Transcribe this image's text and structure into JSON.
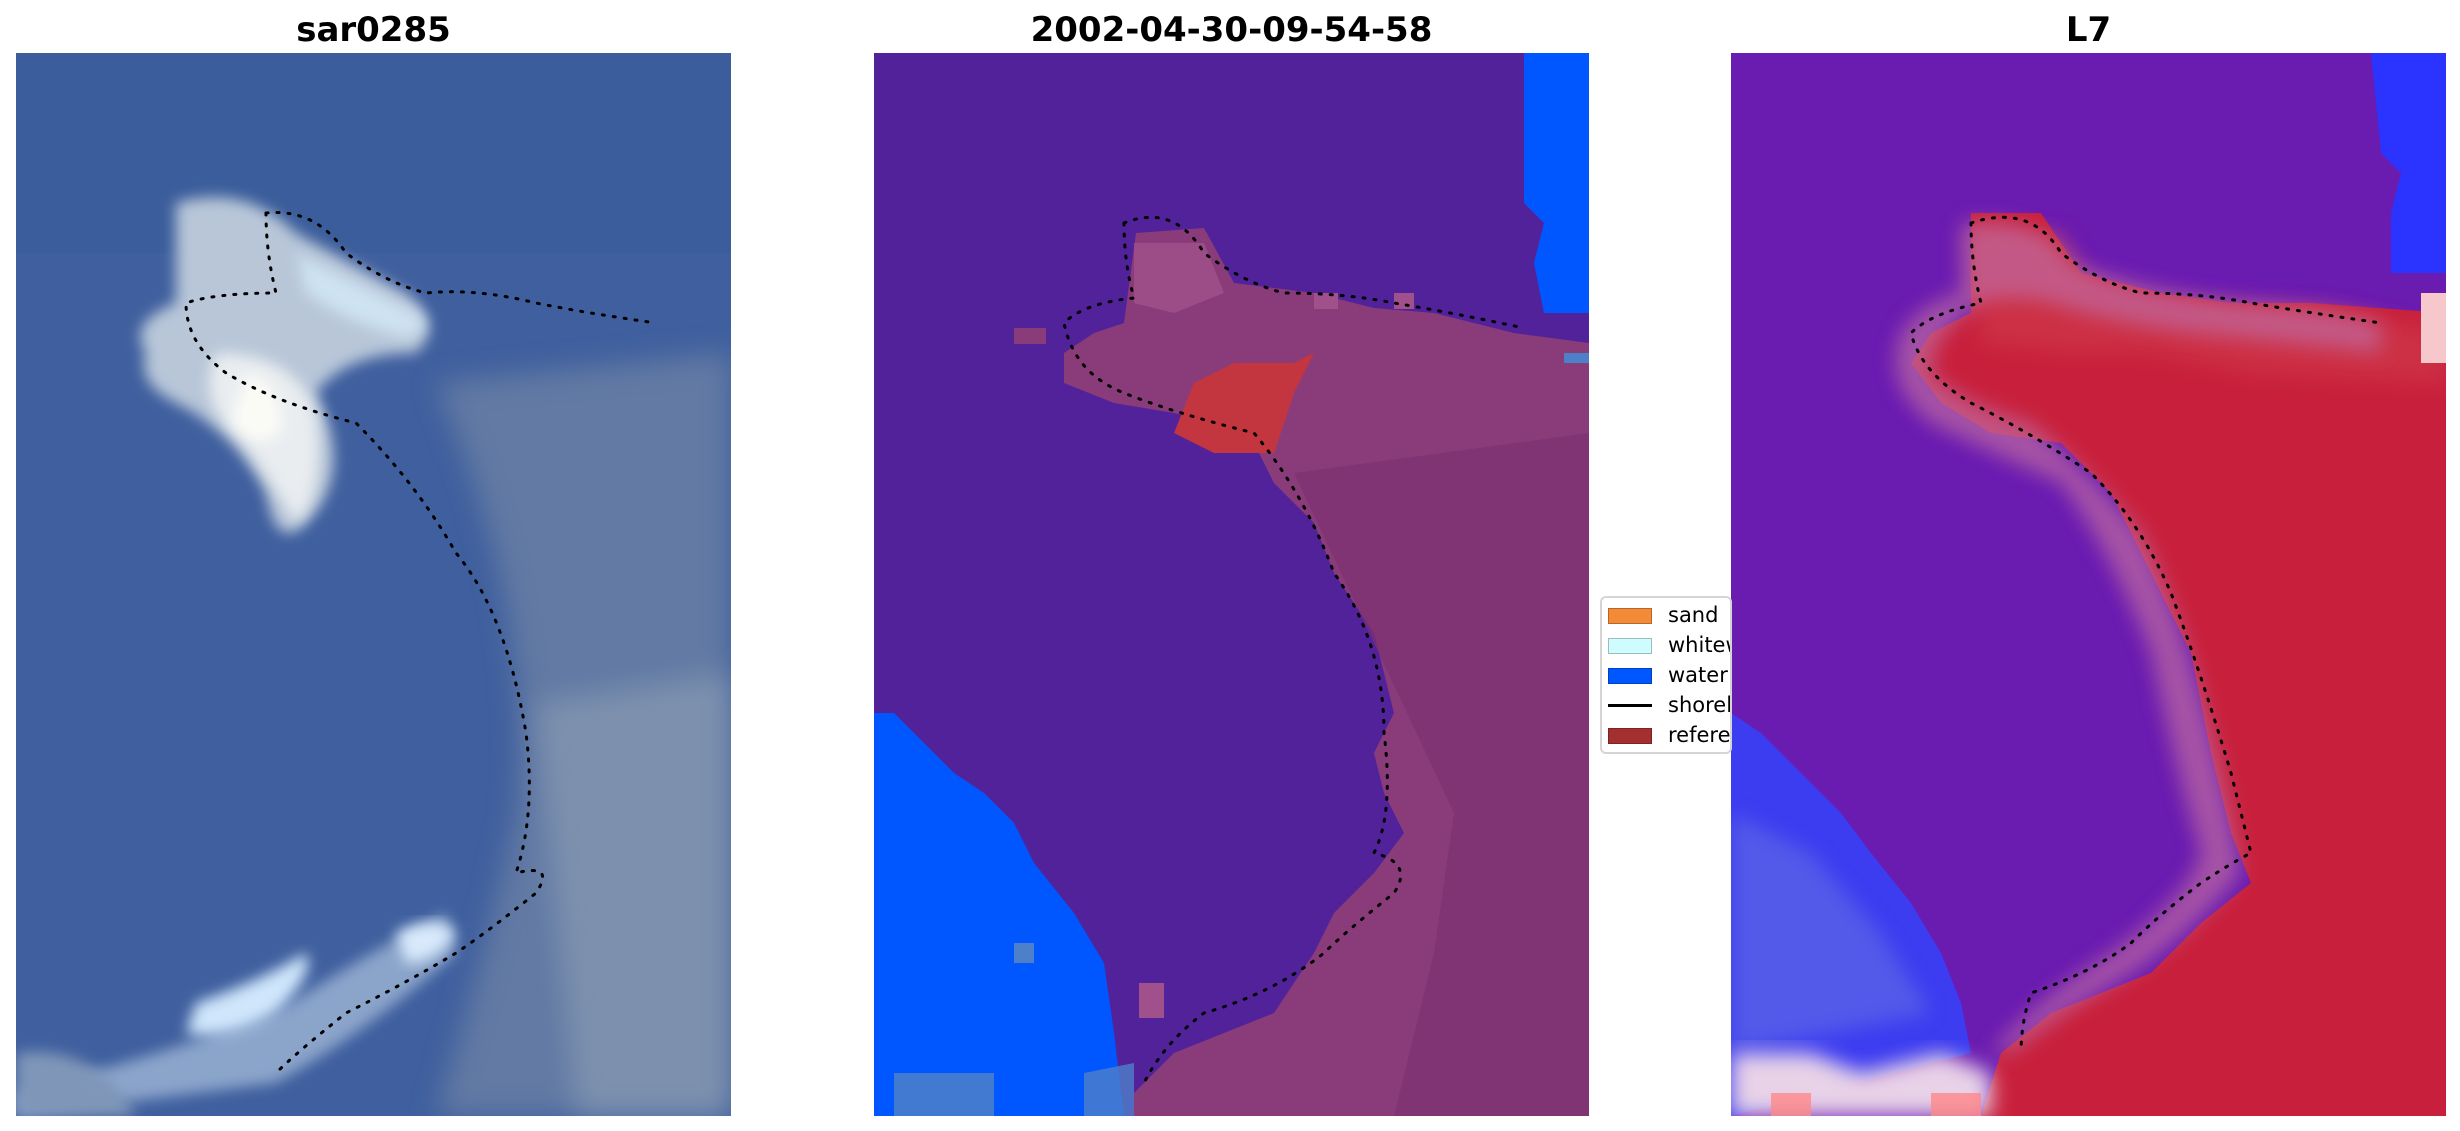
{
  "panels": [
    {
      "title": "sar0285"
    },
    {
      "title": "2002-04-30-09-54-58"
    },
    {
      "title": "L7"
    }
  ],
  "legend": {
    "items": [
      {
        "label": "sand",
        "color": "#f38a36"
      },
      {
        "label": "whitewater",
        "color": "#cefcff"
      },
      {
        "label": "water",
        "color": "#0057ff"
      },
      {
        "label": "shoreline",
        "color": "#000000"
      },
      {
        "label": "reference shoreline",
        "color": "#a3302f"
      }
    ]
  },
  "colors": {
    "sea_rgb": "#3d5e9c",
    "class_sea": "#51229a",
    "class_water": "#0057ff",
    "class_land": "#8a3c7a",
    "index_water": "#6a1bb0",
    "index_land": "#c8203c",
    "index_blue": "#2b33ff"
  }
}
